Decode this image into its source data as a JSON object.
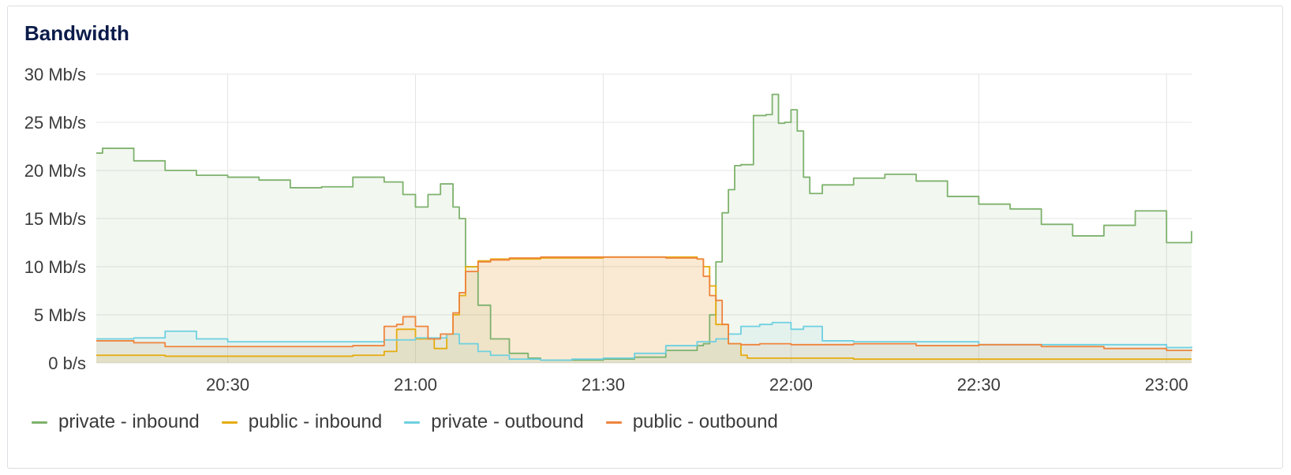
{
  "panel": {
    "title": "Bandwidth"
  },
  "chart_data": {
    "type": "area",
    "title": "Bandwidth",
    "y_ticks": [
      {
        "value": 0,
        "label": "0 b/s"
      },
      {
        "value": 5,
        "label": "5 Mb/s"
      },
      {
        "value": 10,
        "label": "10 Mb/s"
      },
      {
        "value": 15,
        "label": "15 Mb/s"
      },
      {
        "value": 20,
        "label": "20 Mb/s"
      },
      {
        "value": 25,
        "label": "25 Mb/s"
      },
      {
        "value": 30,
        "label": "30 Mb/s"
      }
    ],
    "x_ticks": [
      "20:30",
      "21:00",
      "21:30",
      "22:00",
      "22:30",
      "23:00"
    ],
    "ylim": [
      0,
      30
    ],
    "xlim": [
      "20:09",
      "23:04"
    ],
    "grid": true,
    "legend_position": "bottom-left",
    "series": [
      {
        "name": "private - inbound",
        "color": "#7eb26d",
        "x": [
          "20:09",
          "20:10",
          "20:12",
          "20:15",
          "20:20",
          "20:25",
          "20:30",
          "20:35",
          "20:40",
          "20:45",
          "20:50",
          "20:55",
          "20:58",
          "21:00",
          "21:02",
          "21:04",
          "21:06",
          "21:07",
          "21:08",
          "21:10",
          "21:12",
          "21:15",
          "21:18",
          "21:20",
          "21:25",
          "21:30",
          "21:35",
          "21:40",
          "21:45",
          "21:46",
          "21:47",
          "21:48",
          "21:49",
          "21:50",
          "21:51",
          "21:52",
          "21:54",
          "21:56",
          "21:57",
          "21:58",
          "21:59",
          "22:00",
          "22:01",
          "22:02",
          "22:03",
          "22:05",
          "22:10",
          "22:15",
          "22:20",
          "22:25",
          "22:30",
          "22:35",
          "22:40",
          "22:45",
          "22:50",
          "22:55",
          "23:00",
          "23:04"
        ],
        "values": [
          21.8,
          22.3,
          22.3,
          21.0,
          20.0,
          19.5,
          19.3,
          19.0,
          18.2,
          18.3,
          19.3,
          18.8,
          17.5,
          16.2,
          17.5,
          18.6,
          16.2,
          15.0,
          10.0,
          6.0,
          2.5,
          1.0,
          0.5,
          0.3,
          0.3,
          0.4,
          0.6,
          1.3,
          1.8,
          2.0,
          5.0,
          10.5,
          15.6,
          18.0,
          20.5,
          20.6,
          25.7,
          25.8,
          27.9,
          24.9,
          25.0,
          26.3,
          24.1,
          19.3,
          17.6,
          18.5,
          19.2,
          19.6,
          18.9,
          17.3,
          16.5,
          16.0,
          14.4,
          13.2,
          14.3,
          15.8,
          12.5,
          13.7
        ]
      },
      {
        "name": "public - inbound",
        "color": "#e5ac0e",
        "x": [
          "20:09",
          "20:20",
          "20:30",
          "20:40",
          "20:50",
          "20:55",
          "20:57",
          "21:00",
          "21:03",
          "21:05",
          "21:06",
          "21:07",
          "21:08",
          "21:10",
          "21:12",
          "21:20",
          "21:30",
          "21:40",
          "21:45",
          "21:46",
          "21:47",
          "21:48",
          "21:50",
          "21:52",
          "21:53",
          "22:00",
          "22:10",
          "22:30",
          "23:00",
          "23:04"
        ],
        "values": [
          0.8,
          0.7,
          0.7,
          0.7,
          0.8,
          1.2,
          3.5,
          2.5,
          1.5,
          3.0,
          5.0,
          7.0,
          10.0,
          10.6,
          10.8,
          10.9,
          11.0,
          11.0,
          10.8,
          10.0,
          8.0,
          4.0,
          2.0,
          0.8,
          0.5,
          0.5,
          0.4,
          0.4,
          0.4,
          0.4
        ]
      },
      {
        "name": "private - outbound",
        "color": "#6ed0e0",
        "x": [
          "20:09",
          "20:15",
          "20:20",
          "20:25",
          "20:30",
          "20:40",
          "20:50",
          "20:55",
          "21:00",
          "21:05",
          "21:07",
          "21:10",
          "21:12",
          "21:15",
          "21:20",
          "21:25",
          "21:30",
          "21:35",
          "21:40",
          "21:45",
          "21:48",
          "21:50",
          "21:52",
          "21:55",
          "21:57",
          "22:00",
          "22:02",
          "22:05",
          "22:10",
          "22:30",
          "23:00",
          "23:04"
        ],
        "values": [
          2.5,
          2.6,
          3.3,
          2.5,
          2.2,
          2.2,
          2.2,
          2.4,
          2.6,
          3.0,
          2.0,
          1.2,
          0.8,
          0.4,
          0.3,
          0.4,
          0.5,
          1.0,
          1.8,
          2.2,
          2.5,
          3.0,
          3.8,
          4.0,
          4.2,
          3.5,
          3.8,
          2.3,
          2.2,
          1.9,
          1.6,
          1.7
        ]
      },
      {
        "name": "public - outbound",
        "color": "#ef843c",
        "x": [
          "20:09",
          "20:15",
          "20:20",
          "20:30",
          "20:40",
          "20:50",
          "20:55",
          "20:57",
          "20:58",
          "21:00",
          "21:02",
          "21:04",
          "21:06",
          "21:07",
          "21:08",
          "21:10",
          "21:12",
          "21:15",
          "21:20",
          "21:30",
          "21:40",
          "21:45",
          "21:46",
          "21:47",
          "21:48",
          "21:49",
          "21:50",
          "21:52",
          "21:55",
          "22:00",
          "22:10",
          "22:20",
          "22:30",
          "22:40",
          "22:50",
          "23:00",
          "23:04"
        ],
        "values": [
          2.3,
          2.1,
          1.7,
          1.7,
          1.7,
          1.8,
          3.8,
          4.0,
          4.8,
          3.8,
          2.5,
          3.0,
          5.2,
          7.3,
          9.5,
          10.5,
          10.7,
          10.9,
          11.0,
          11.0,
          10.9,
          10.8,
          9.0,
          7.0,
          6.5,
          4.0,
          2.0,
          1.9,
          2.0,
          1.9,
          2.0,
          1.8,
          1.9,
          1.7,
          1.5,
          1.3,
          1.4
        ]
      }
    ]
  }
}
